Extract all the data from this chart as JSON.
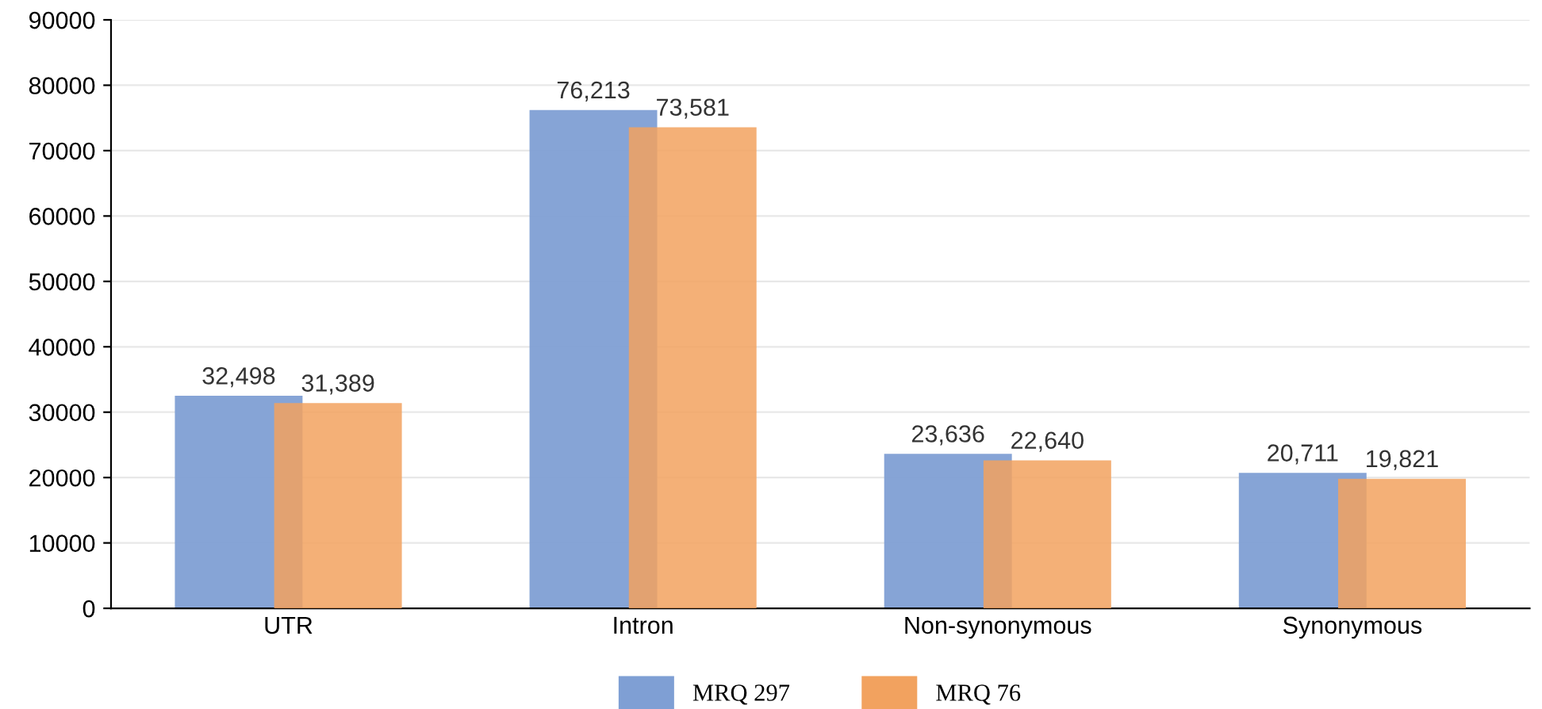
{
  "chart_data": {
    "type": "bar",
    "categories": [
      "UTR",
      "Intron",
      "Non-synonymous",
      "Synonymous"
    ],
    "series": [
      {
        "name": "MRQ 297",
        "color": "#7f9fd4",
        "values": [
          32498,
          76213,
          23636,
          20711
        ],
        "value_labels": [
          "32,498",
          "76,213",
          "23,636",
          "20,711"
        ]
      },
      {
        "name": "MRQ 76",
        "color": "#f2a25f",
        "values": [
          31389,
          73581,
          22640,
          19821
        ],
        "value_labels": [
          "31,389",
          "73,581",
          "22,640",
          "19,821"
        ]
      }
    ],
    "ylim": [
      0,
      90000
    ],
    "yticks": [
      0,
      10000,
      20000,
      30000,
      40000,
      50000,
      60000,
      70000,
      80000,
      90000
    ],
    "grid": "y",
    "legend": "bottom"
  }
}
